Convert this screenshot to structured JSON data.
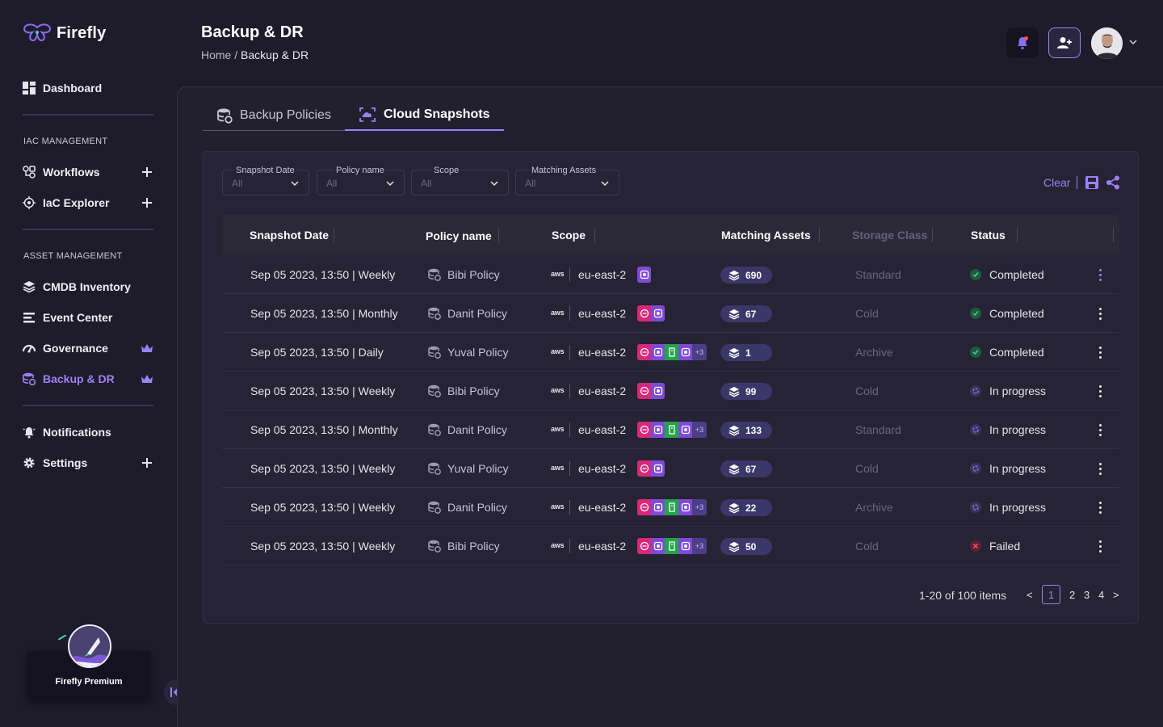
{
  "app": {
    "name": "Firefly"
  },
  "sidebar": {
    "dashboard": "Dashboard",
    "iac_section": "IAC MANAGEMENT",
    "workflows": "Workflows",
    "iac_explorer": "IaC Explorer",
    "asset_section": "ASSET MANAGEMENT",
    "cmdb": "CMDB Inventory",
    "event_center": "Event Center",
    "governance": "Governance",
    "backup": "Backup & DR",
    "notifications": "Notifications",
    "settings": "Settings",
    "premium": "Firefly Premium"
  },
  "header": {
    "title": "Backup & DR",
    "breadcrumb_home": "Home",
    "breadcrumb_sep": "/",
    "breadcrumb_current": "Backup & DR"
  },
  "tabs": [
    {
      "label": "Backup Policies",
      "active": false
    },
    {
      "label": "Cloud Snapshots",
      "active": true
    }
  ],
  "filters": [
    {
      "label": "Snapshot Date",
      "value": "All"
    },
    {
      "label": "Policy name",
      "value": "All"
    },
    {
      "label": "Scope",
      "value": "All"
    },
    {
      "label": "Matching Assets",
      "value": "All"
    }
  ],
  "actions": {
    "clear": "Clear"
  },
  "table": {
    "columns": [
      "Snapshot Date",
      "Policy name",
      "Scope",
      "Matching Assets",
      "Storage Class",
      "Status"
    ],
    "rows": [
      {
        "date": "Sep 05 2023, 13:50 | Weekly",
        "policy": "Bibi Policy",
        "provider": "aws",
        "region": "eu-east-2",
        "badges": [
          "purple"
        ],
        "assets": "690",
        "storage": "Standard",
        "status": "Completed",
        "status_type": "completed"
      },
      {
        "date": "Sep 05 2023, 13:50 | Monthly",
        "policy": "Danit Policy",
        "provider": "aws",
        "region": "eu-east-2",
        "badges": [
          "red",
          "purple"
        ],
        "assets": "67",
        "storage": "Cold",
        "status": "Completed",
        "status_type": "completed"
      },
      {
        "date": "Sep 05 2023, 13:50 | Daily",
        "policy": "Yuval Policy",
        "provider": "aws",
        "region": "eu-east-2",
        "badges": [
          "red",
          "purple",
          "green",
          "purple"
        ],
        "more": "+3",
        "assets": "1",
        "storage": "Archive",
        "status": "Completed",
        "status_type": "completed"
      },
      {
        "date": "Sep 05 2023, 13:50 | Weekly",
        "policy": "Bibi Policy",
        "provider": "aws",
        "region": "eu-east-2",
        "badges": [
          "red",
          "purple"
        ],
        "assets": "99",
        "storage": "Cold",
        "status": "In progress",
        "status_type": "progress"
      },
      {
        "date": "Sep 05 2023, 13:50 | Monthly",
        "policy": "Danit Policy",
        "provider": "aws",
        "region": "eu-east-2",
        "badges": [
          "red",
          "purple",
          "green",
          "purple"
        ],
        "more": "+3",
        "assets": "133",
        "storage": "Standard",
        "status": "In progress",
        "status_type": "progress"
      },
      {
        "date": "Sep 05 2023, 13:50 | Weekly",
        "policy": "Yuval Policy",
        "provider": "aws",
        "region": "eu-east-2",
        "badges": [
          "red",
          "purple"
        ],
        "assets": "67",
        "storage": "Cold",
        "status": "In progress",
        "status_type": "progress"
      },
      {
        "date": "Sep 05 2023, 13:50 | Weekly",
        "policy": "Danit Policy",
        "provider": "aws",
        "region": "eu-east-2",
        "badges": [
          "red",
          "purple",
          "green",
          "purple"
        ],
        "more": "+3",
        "assets": "22",
        "storage": "Archive",
        "status": "In progress",
        "status_type": "progress"
      },
      {
        "date": "Sep 05 2023, 13:50 | Weekly",
        "policy": "Bibi Policy",
        "provider": "aws",
        "region": "eu-east-2",
        "badges": [
          "red",
          "purple",
          "green",
          "purple"
        ],
        "more": "+3",
        "assets": "50",
        "storage": "Cold",
        "status": "Failed",
        "status_type": "failed"
      }
    ]
  },
  "pagination": {
    "info": "1-20 of 100 items",
    "prev": "<",
    "pages": [
      "1",
      "2",
      "3",
      "4"
    ],
    "current": "1",
    "next": ">"
  },
  "colors": {
    "accent": "#9b82f4",
    "background": "#1e1b2b",
    "panel": "#22202f"
  }
}
